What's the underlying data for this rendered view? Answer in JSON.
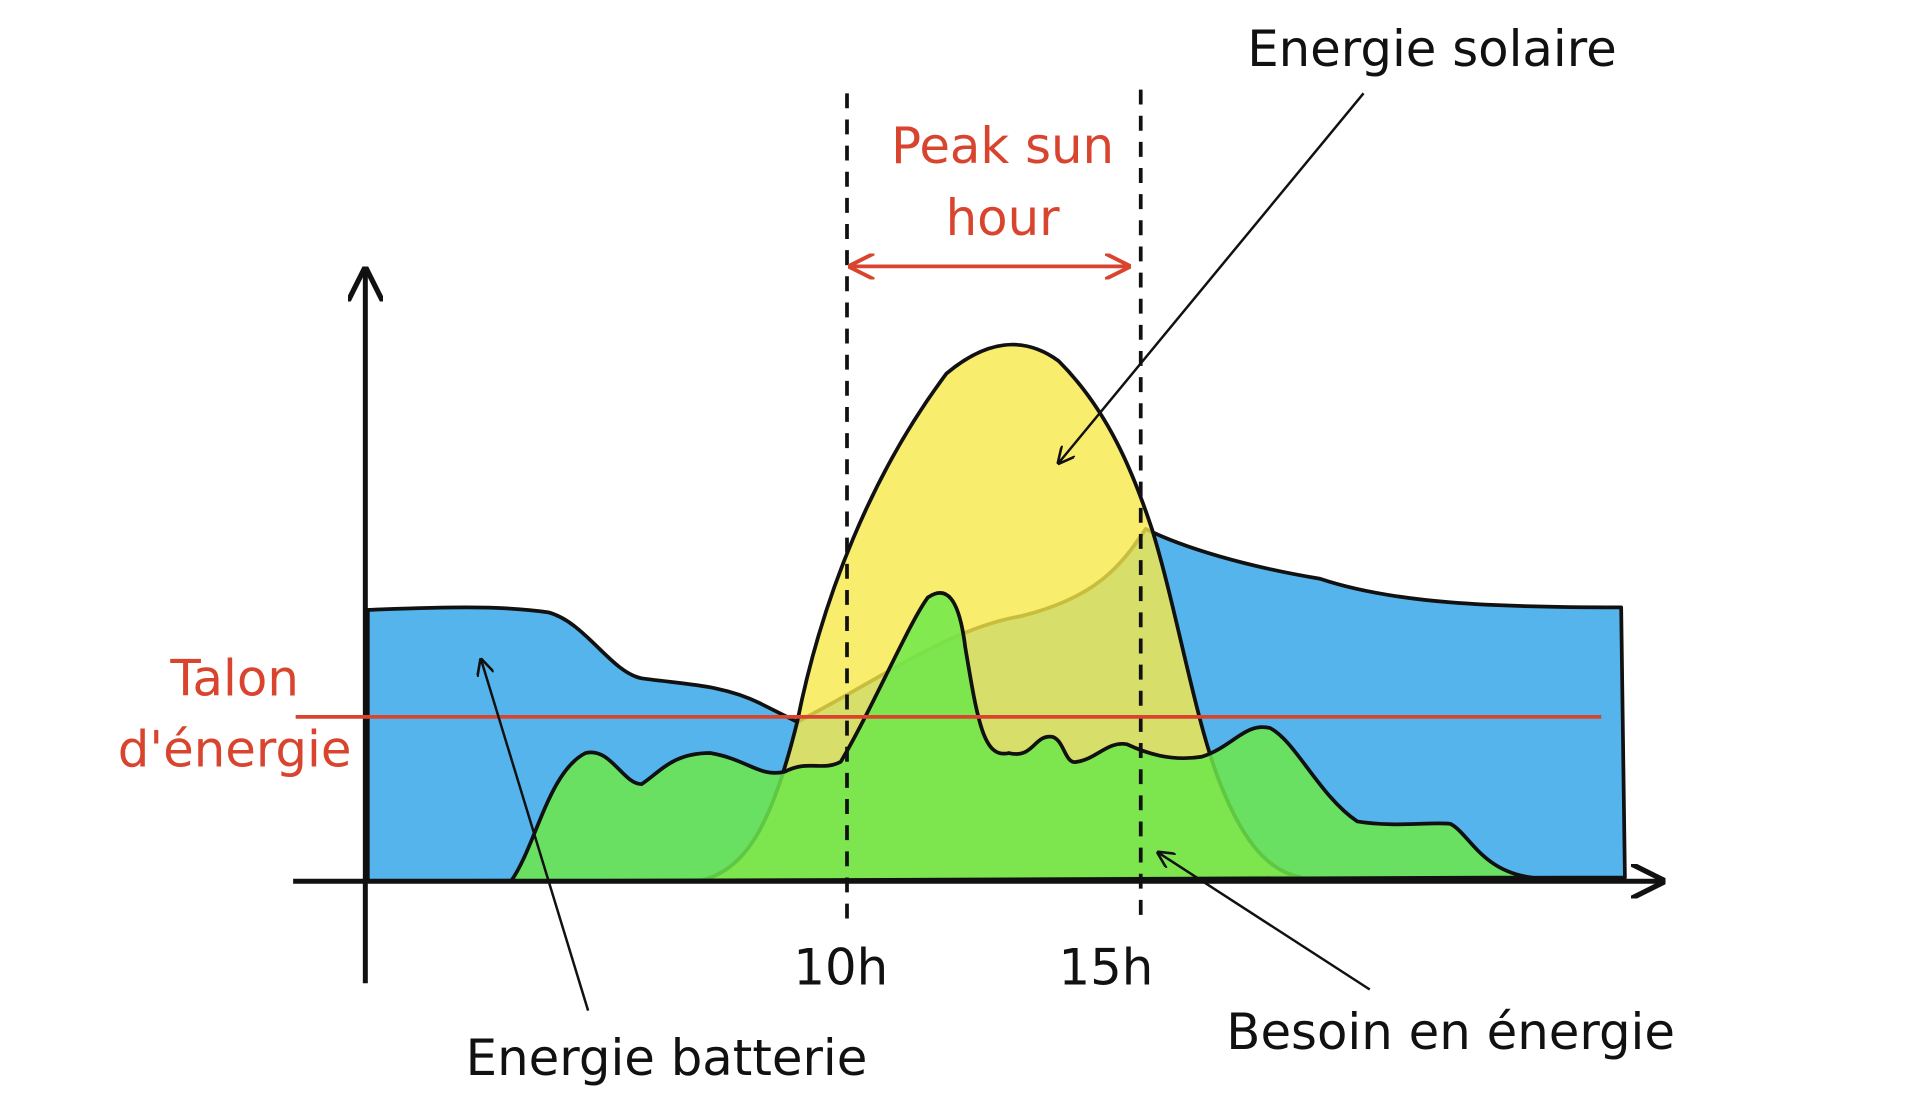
{
  "labels": {
    "solar": "Energie solaire",
    "peak": [
      "Peak sun",
      "hour"
    ],
    "base": [
      "Talon",
      "d'énergie"
    ],
    "battery": "Energie batterie",
    "need": "Besoin en énergie",
    "start": "10h",
    "end": "15h"
  }
}
